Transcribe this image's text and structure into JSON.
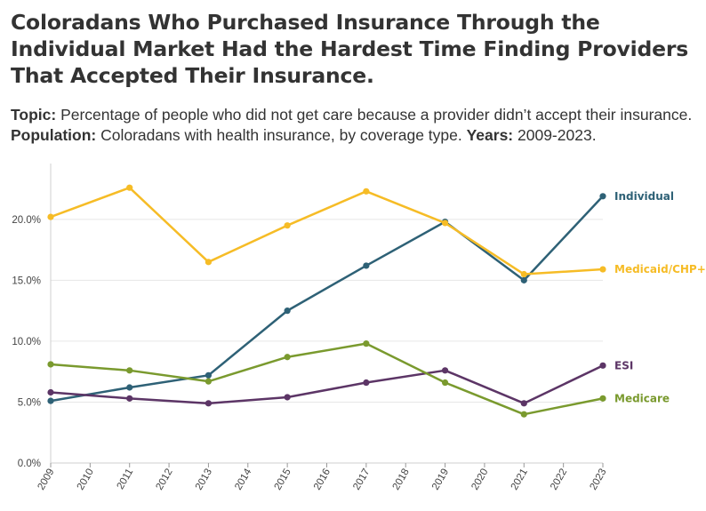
{
  "header": {
    "title": "Coloradans Who Purchased Insurance Through the Individual Market Had the Hardest Time Finding Providers That Accepted Their Insurance.",
    "topic_label": "Topic:",
    "topic_text": " Percentage of people who did not get care because a provider didn’t accept their insurance. ",
    "population_label": "Population:",
    "population_text": " Coloradans with health insurance, by coverage type. ",
    "years_label": "Years:",
    "years_text": " 2009-2023."
  },
  "chart_data": {
    "type": "line",
    "x": [
      2009,
      2011,
      2013,
      2015,
      2017,
      2019,
      2021,
      2023
    ],
    "x_ticks": [
      "2009",
      "2010",
      "2011",
      "2012",
      "2013",
      "2014",
      "2015",
      "2016",
      "2017",
      "2018",
      "2019",
      "2020",
      "2021",
      "2022",
      "2023"
    ],
    "y_ticks": [
      "0.0%",
      "5.0%",
      "10.0%",
      "15.0%",
      "20.0%"
    ],
    "ylim": [
      0,
      24
    ],
    "grid": true,
    "series": [
      {
        "name": "Individual",
        "color": "#2e6176",
        "values": [
          5.1,
          6.2,
          7.2,
          12.5,
          16.2,
          19.8,
          15.0,
          21.9
        ]
      },
      {
        "name": "Medicaid/CHP+",
        "color": "#f6bc26",
        "values": [
          20.2,
          22.6,
          16.5,
          19.5,
          22.3,
          19.7,
          15.5,
          15.9
        ]
      },
      {
        "name": "ESI",
        "color": "#5c3566",
        "values": [
          5.8,
          5.3,
          4.9,
          5.4,
          6.6,
          7.6,
          4.9,
          8.0
        ]
      },
      {
        "name": "Medicare",
        "color": "#7a9a2e",
        "values": [
          8.1,
          7.6,
          6.7,
          8.7,
          9.8,
          6.6,
          4.0,
          5.3
        ]
      }
    ]
  }
}
